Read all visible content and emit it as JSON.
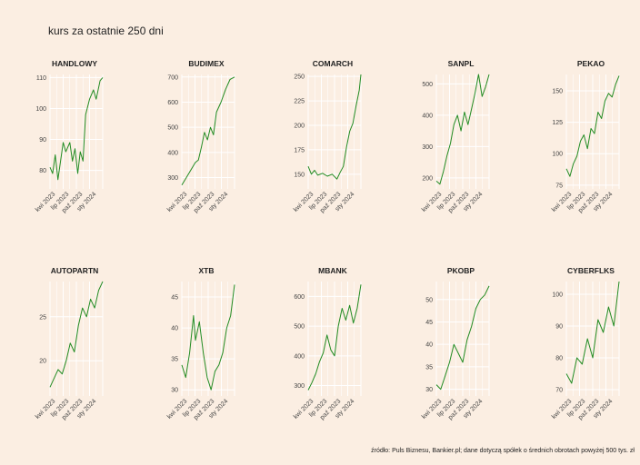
{
  "page": {
    "title": "kurs za ostatnie 250 dni",
    "caption": "źródło: Puls Biznesu, Bankier.pl; dane dotyczą spółek o średnich obrotach powyżej 500 tys. zł",
    "background": "#fbeee2",
    "line_color": "#228b22"
  },
  "chart_data": [
    {
      "type": "line",
      "title": "HANDLOWY",
      "x_ticks": [
        "kwi 2023",
        "lip 2023",
        "paź 2023",
        "sty 2024"
      ],
      "y_ticks": [
        80,
        90,
        100,
        110
      ],
      "ylim": [
        74,
        111
      ],
      "points": [
        [
          0,
          81
        ],
        [
          4,
          79
        ],
        [
          8,
          85
        ],
        [
          12,
          77
        ],
        [
          16,
          83
        ],
        [
          20,
          89
        ],
        [
          24,
          86
        ],
        [
          30,
          89
        ],
        [
          34,
          83
        ],
        [
          38,
          87
        ],
        [
          42,
          79
        ],
        [
          46,
          86
        ],
        [
          50,
          83
        ],
        [
          54,
          98
        ],
        [
          60,
          103
        ],
        [
          66,
          106
        ],
        [
          70,
          103
        ],
        [
          76,
          109
        ],
        [
          80,
          110
        ]
      ]
    },
    {
      "type": "line",
      "title": "BUDIMEX",
      "x_ticks": [
        "kwi 2023",
        "lip 2023",
        "paź 2023",
        "sty 2024"
      ],
      "y_ticks": [
        300,
        400,
        500,
        600,
        700
      ],
      "ylim": [
        255,
        710
      ],
      "points": [
        [
          0,
          270
        ],
        [
          6,
          300
        ],
        [
          12,
          330
        ],
        [
          18,
          360
        ],
        [
          22,
          370
        ],
        [
          26,
          420
        ],
        [
          30,
          480
        ],
        [
          34,
          450
        ],
        [
          38,
          500
        ],
        [
          42,
          470
        ],
        [
          46,
          560
        ],
        [
          52,
          600
        ],
        [
          58,
          650
        ],
        [
          64,
          690
        ],
        [
          70,
          700
        ]
      ]
    },
    {
      "type": "line",
      "title": "COMARCH",
      "x_ticks": [
        "kwi 2023",
        "lip 2023",
        "paź 2023",
        "sty 2024"
      ],
      "y_ticks": [
        150,
        175,
        200,
        225,
        250
      ],
      "ylim": [
        135,
        252
      ],
      "points": [
        [
          0,
          158
        ],
        [
          4,
          150
        ],
        [
          8,
          154
        ],
        [
          12,
          149
        ],
        [
          18,
          151
        ],
        [
          24,
          148
        ],
        [
          30,
          150
        ],
        [
          36,
          145
        ],
        [
          40,
          152
        ],
        [
          44,
          158
        ],
        [
          48,
          178
        ],
        [
          52,
          194
        ],
        [
          56,
          202
        ],
        [
          60,
          220
        ],
        [
          64,
          236
        ],
        [
          66,
          252
        ]
      ]
    },
    {
      "type": "line",
      "title": "SANPL",
      "x_ticks": [
        "kwi 2023",
        "lip 2023",
        "paź 2023",
        "sty 2024"
      ],
      "y_ticks": [
        200,
        300,
        400,
        500
      ],
      "ylim": [
        165,
        530
      ],
      "points": [
        [
          0,
          190
        ],
        [
          4,
          180
        ],
        [
          8,
          220
        ],
        [
          12,
          270
        ],
        [
          16,
          310
        ],
        [
          20,
          370
        ],
        [
          24,
          400
        ],
        [
          28,
          350
        ],
        [
          32,
          410
        ],
        [
          36,
          370
        ],
        [
          40,
          420
        ],
        [
          44,
          470
        ],
        [
          48,
          530
        ],
        [
          52,
          460
        ],
        [
          56,
          490
        ],
        [
          60,
          530
        ]
      ]
    },
    {
      "type": "line",
      "title": "PEKAO",
      "x_ticks": [
        "kwi 2023",
        "lip 2023",
        "paź 2023",
        "sty 2024"
      ],
      "y_ticks": [
        75,
        100,
        125,
        150
      ],
      "ylim": [
        72,
        163
      ],
      "points": [
        [
          0,
          88
        ],
        [
          4,
          82
        ],
        [
          8,
          92
        ],
        [
          12,
          98
        ],
        [
          16,
          110
        ],
        [
          20,
          115
        ],
        [
          24,
          104
        ],
        [
          28,
          120
        ],
        [
          32,
          116
        ],
        [
          36,
          133
        ],
        [
          40,
          128
        ],
        [
          44,
          142
        ],
        [
          48,
          148
        ],
        [
          52,
          145
        ],
        [
          56,
          155
        ],
        [
          60,
          162
        ]
      ]
    },
    {
      "type": "line",
      "title": "AUTOPARTN",
      "x_ticks": [
        "kwi 2023",
        "lip 2023",
        "paź 2023",
        "sty 2024"
      ],
      "y_ticks": [
        20,
        25
      ],
      "ylim": [
        16,
        29
      ],
      "points": [
        [
          0,
          17
        ],
        [
          4,
          18
        ],
        [
          8,
          19
        ],
        [
          12,
          18.5
        ],
        [
          16,
          20
        ],
        [
          20,
          22
        ],
        [
          24,
          21
        ],
        [
          28,
          24
        ],
        [
          32,
          26
        ],
        [
          36,
          25
        ],
        [
          40,
          27
        ],
        [
          44,
          26
        ],
        [
          48,
          28
        ],
        [
          52,
          29
        ]
      ]
    },
    {
      "type": "line",
      "title": "XTB",
      "x_ticks": [
        "kwi 2023",
        "lip 2023",
        "paź 2023",
        "sty 2024"
      ],
      "y_ticks": [
        30,
        35,
        40,
        45
      ],
      "ylim": [
        29,
        47.5
      ],
      "points": [
        [
          0,
          34
        ],
        [
          4,
          32
        ],
        [
          8,
          36
        ],
        [
          12,
          42
        ],
        [
          14,
          38
        ],
        [
          18,
          41
        ],
        [
          22,
          36
        ],
        [
          26,
          32
        ],
        [
          30,
          30
        ],
        [
          34,
          33
        ],
        [
          38,
          34
        ],
        [
          42,
          36
        ],
        [
          46,
          40
        ],
        [
          50,
          42
        ],
        [
          54,
          47
        ]
      ]
    },
    {
      "type": "line",
      "title": "MBANK",
      "x_ticks": [
        "kwi 2023",
        "lip 2023",
        "paź 2023",
        "sty 2024"
      ],
      "y_ticks": [
        300,
        400,
        500,
        600
      ],
      "ylim": [
        265,
        650
      ],
      "points": [
        [
          0,
          285
        ],
        [
          4,
          310
        ],
        [
          8,
          340
        ],
        [
          12,
          380
        ],
        [
          16,
          410
        ],
        [
          20,
          470
        ],
        [
          24,
          420
        ],
        [
          28,
          400
        ],
        [
          32,
          500
        ],
        [
          36,
          560
        ],
        [
          40,
          520
        ],
        [
          44,
          570
        ],
        [
          48,
          510
        ],
        [
          52,
          560
        ],
        [
          56,
          640
        ]
      ]
    },
    {
      "type": "line",
      "title": "PKOBP",
      "x_ticks": [
        "kwi 2023",
        "lip 2023",
        "paź 2023",
        "sty 2024"
      ],
      "y_ticks": [
        30,
        35,
        40,
        45,
        50
      ],
      "ylim": [
        28.5,
        54
      ],
      "points": [
        [
          0,
          31
        ],
        [
          4,
          30
        ],
        [
          8,
          33
        ],
        [
          12,
          36
        ],
        [
          16,
          40
        ],
        [
          20,
          38
        ],
        [
          24,
          36
        ],
        [
          28,
          41
        ],
        [
          32,
          44
        ],
        [
          36,
          48
        ],
        [
          40,
          50
        ],
        [
          44,
          51
        ],
        [
          48,
          53
        ]
      ]
    },
    {
      "type": "line",
      "title": "CYBERFLKS",
      "x_ticks": [
        "kwi 2023",
        "lip 2023",
        "paź 2023",
        "sty 2024"
      ],
      "y_ticks": [
        70,
        80,
        90,
        100
      ],
      "ylim": [
        68,
        104
      ],
      "points": [
        [
          0,
          75
        ],
        [
          4,
          72
        ],
        [
          8,
          80
        ],
        [
          12,
          78
        ],
        [
          16,
          86
        ],
        [
          20,
          80
        ],
        [
          24,
          92
        ],
        [
          28,
          88
        ],
        [
          32,
          96
        ],
        [
          36,
          90
        ],
        [
          40,
          104
        ]
      ]
    }
  ]
}
